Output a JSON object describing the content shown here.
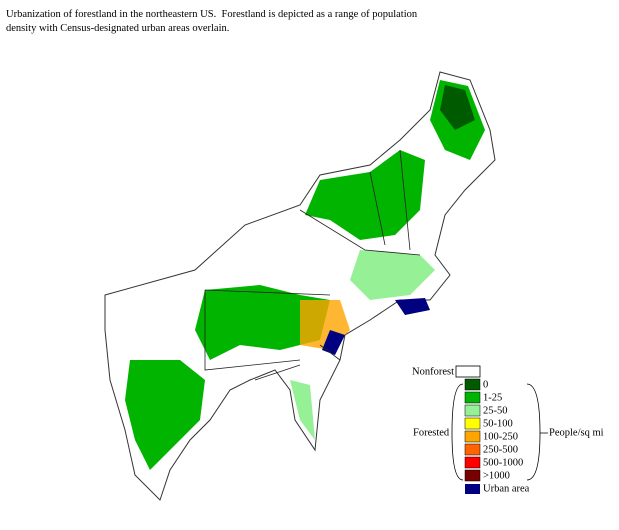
{
  "caption": "Urbanization of forestland in the northeastern US.  Forestland is depicted as a range of population density with Census-designated urban areas overlain.",
  "legend": {
    "nonforest": {
      "label": "Nonforest",
      "color": "#ffffff"
    },
    "forested_label": "Forested",
    "unit_label": "People/sq mi",
    "classes": [
      {
        "label": "0",
        "color": "#005a00"
      },
      {
        "label": "1-25",
        "color": "#00b400"
      },
      {
        "label": "25-50",
        "color": "#96f096"
      },
      {
        "label": "50-100",
        "color": "#ffff00"
      },
      {
        "label": "100-250",
        "color": "#ffa500"
      },
      {
        "label": "250-500",
        "color": "#ff6400"
      },
      {
        "label": "500-1000",
        "color": "#ff0000"
      },
      {
        "label": ">1000",
        "color": "#780000"
      }
    ],
    "urban": {
      "label": "Urban area",
      "color": "#000080"
    }
  }
}
